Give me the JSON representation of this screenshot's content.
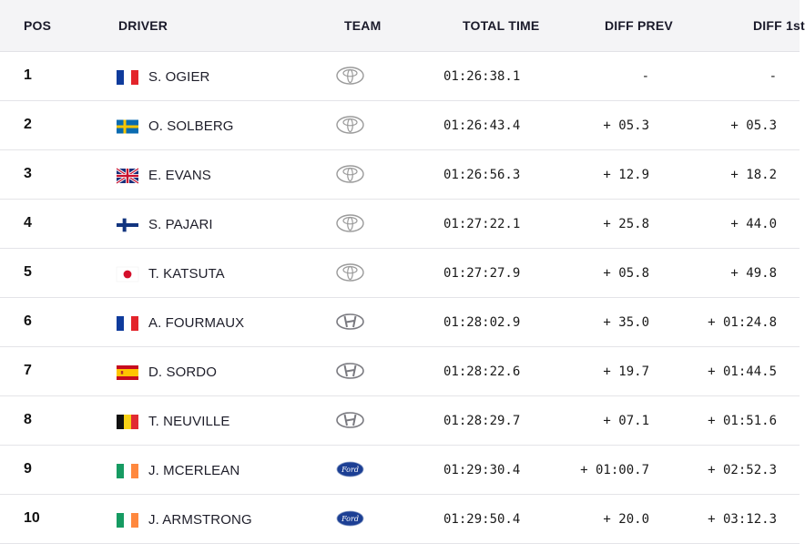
{
  "headers": {
    "pos": "POS",
    "driver": "DRIVER",
    "team": "TEAM",
    "total_time": "TOTAL TIME",
    "diff_prev": "DIFF PREV",
    "diff_first": "DIFF 1st"
  },
  "rows": [
    {
      "pos": "1",
      "flag": "france",
      "driver": "S. OGIER",
      "team_logo": "toyota-logo-icon",
      "total": "01:26:38.1",
      "diff_prev": "-",
      "diff_first": "-"
    },
    {
      "pos": "2",
      "flag": "sweden",
      "driver": "O. SOLBERG",
      "team_logo": "toyota-logo-icon",
      "total": "01:26:43.4",
      "diff_prev": "+ 05.3",
      "diff_first": "+ 05.3"
    },
    {
      "pos": "3",
      "flag": "united-kingdom",
      "driver": "E. EVANS",
      "team_logo": "toyota-logo-icon",
      "total": "01:26:56.3",
      "diff_prev": "+ 12.9",
      "diff_first": "+ 18.2"
    },
    {
      "pos": "4",
      "flag": "finland",
      "driver": "S. PAJARI",
      "team_logo": "toyota-logo-icon",
      "total": "01:27:22.1",
      "diff_prev": "+ 25.8",
      "diff_first": "+ 44.0"
    },
    {
      "pos": "5",
      "flag": "japan",
      "driver": "T. KATSUTA",
      "team_logo": "toyota-logo-icon",
      "total": "01:27:27.9",
      "diff_prev": "+ 05.8",
      "diff_first": "+ 49.8"
    },
    {
      "pos": "6",
      "flag": "france",
      "driver": "A. FOURMAUX",
      "team_logo": "hyundai-logo-icon",
      "total": "01:28:02.9",
      "diff_prev": "+ 35.0",
      "diff_first": "+ 01:24.8"
    },
    {
      "pos": "7",
      "flag": "spain",
      "driver": "D. SORDO",
      "team_logo": "hyundai-logo-icon",
      "total": "01:28:22.6",
      "diff_prev": "+ 19.7",
      "diff_first": "+ 01:44.5"
    },
    {
      "pos": "8",
      "flag": "belgium",
      "driver": "T. NEUVILLE",
      "team_logo": "hyundai-logo-icon",
      "total": "01:28:29.7",
      "diff_prev": "+ 07.1",
      "diff_first": "+ 01:51.6"
    },
    {
      "pos": "9",
      "flag": "ireland",
      "driver": "J. MCERLEAN",
      "team_logo": "ford-logo-icon",
      "total": "01:29:30.4",
      "diff_prev": "+ 01:00.7",
      "diff_first": "+ 02:52.3"
    },
    {
      "pos": "10",
      "flag": "ireland",
      "driver": "J. ARMSTRONG",
      "team_logo": "ford-logo-icon",
      "total": "01:29:50.4",
      "diff_prev": "+ 20.0",
      "diff_first": "+ 03:12.3"
    }
  ],
  "colors": {
    "header_bg": "#f4f4f6",
    "row_border": "#e4e4e8",
    "ford_blue": "#1c3f94"
  }
}
